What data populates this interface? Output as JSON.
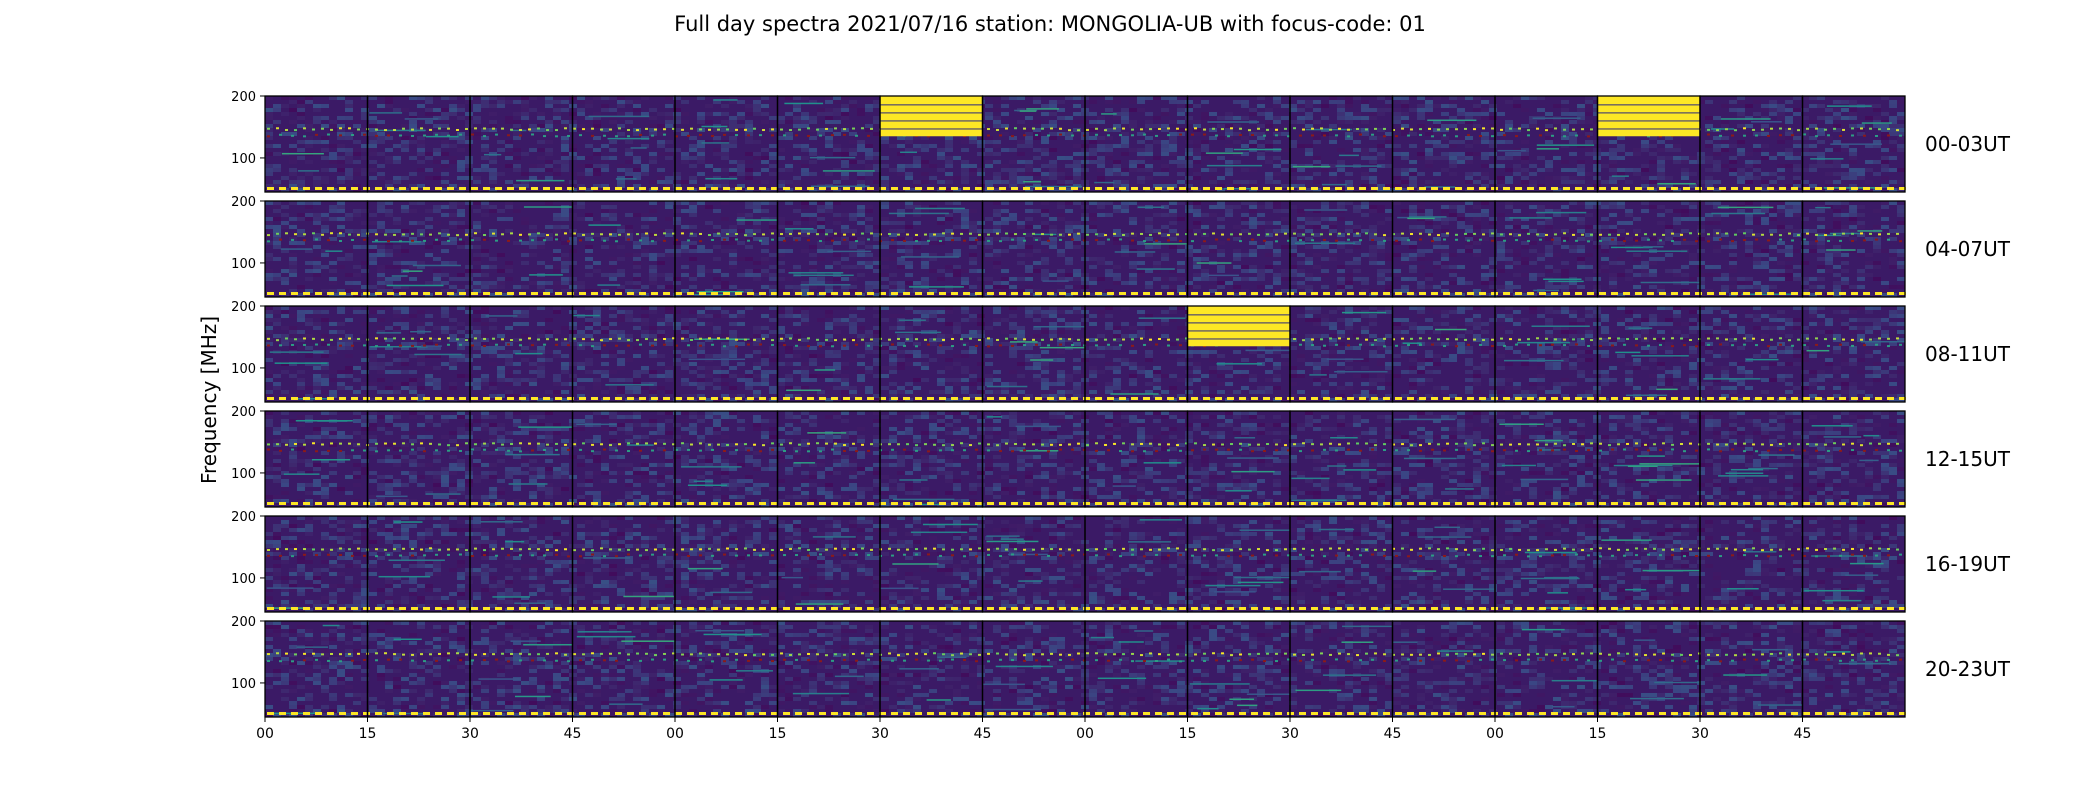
{
  "title": "Full day spectra 2021/07/16 station: MONGOLIA-UB with focus-code: 01",
  "ylabel": "Frequency [MHz]",
  "chart_data": {
    "type": "heatmap",
    "title": "Full day spectra 2021/07/16 station: MONGOLIA-UB with focus-code: 01",
    "ylabel": "Frequency [MHz]",
    "xlabel": "",
    "ylim": [
      45,
      200
    ],
    "yticks": [
      100,
      200
    ],
    "x_tick_labels": [
      "00",
      "15",
      "30",
      "45",
      "00",
      "15",
      "30",
      "45",
      "00",
      "15",
      "30",
      "45",
      "00",
      "15",
      "30",
      "45"
    ],
    "panels_per_row": 16,
    "minutes_per_panel": 15,
    "colormap": [
      "#440154",
      "#3b528b",
      "#21918c",
      "#5ec962",
      "#fde725"
    ],
    "rows": [
      {
        "label": "00-03UT",
        "saturated_blocks": [
          {
            "panel": 6,
            "fmin": 135,
            "fmax": 200
          },
          {
            "panel": 13,
            "fmin": 135,
            "fmax": 200
          }
        ]
      },
      {
        "label": "04-07UT",
        "saturated_blocks": []
      },
      {
        "label": "08-11UT",
        "saturated_blocks": [
          {
            "panel": 9,
            "fmin": 135,
            "fmax": 200
          }
        ]
      },
      {
        "label": "12-15UT",
        "saturated_blocks": []
      },
      {
        "label": "16-19UT",
        "saturated_blocks": []
      },
      {
        "label": "20-23UT",
        "saturated_blocks": []
      }
    ],
    "persistent_lines_mhz": [
      148,
      138,
      50
    ],
    "colors": {
      "background": "#3b1a66",
      "saturated": "#fde725",
      "panel_border": "#000000"
    }
  }
}
